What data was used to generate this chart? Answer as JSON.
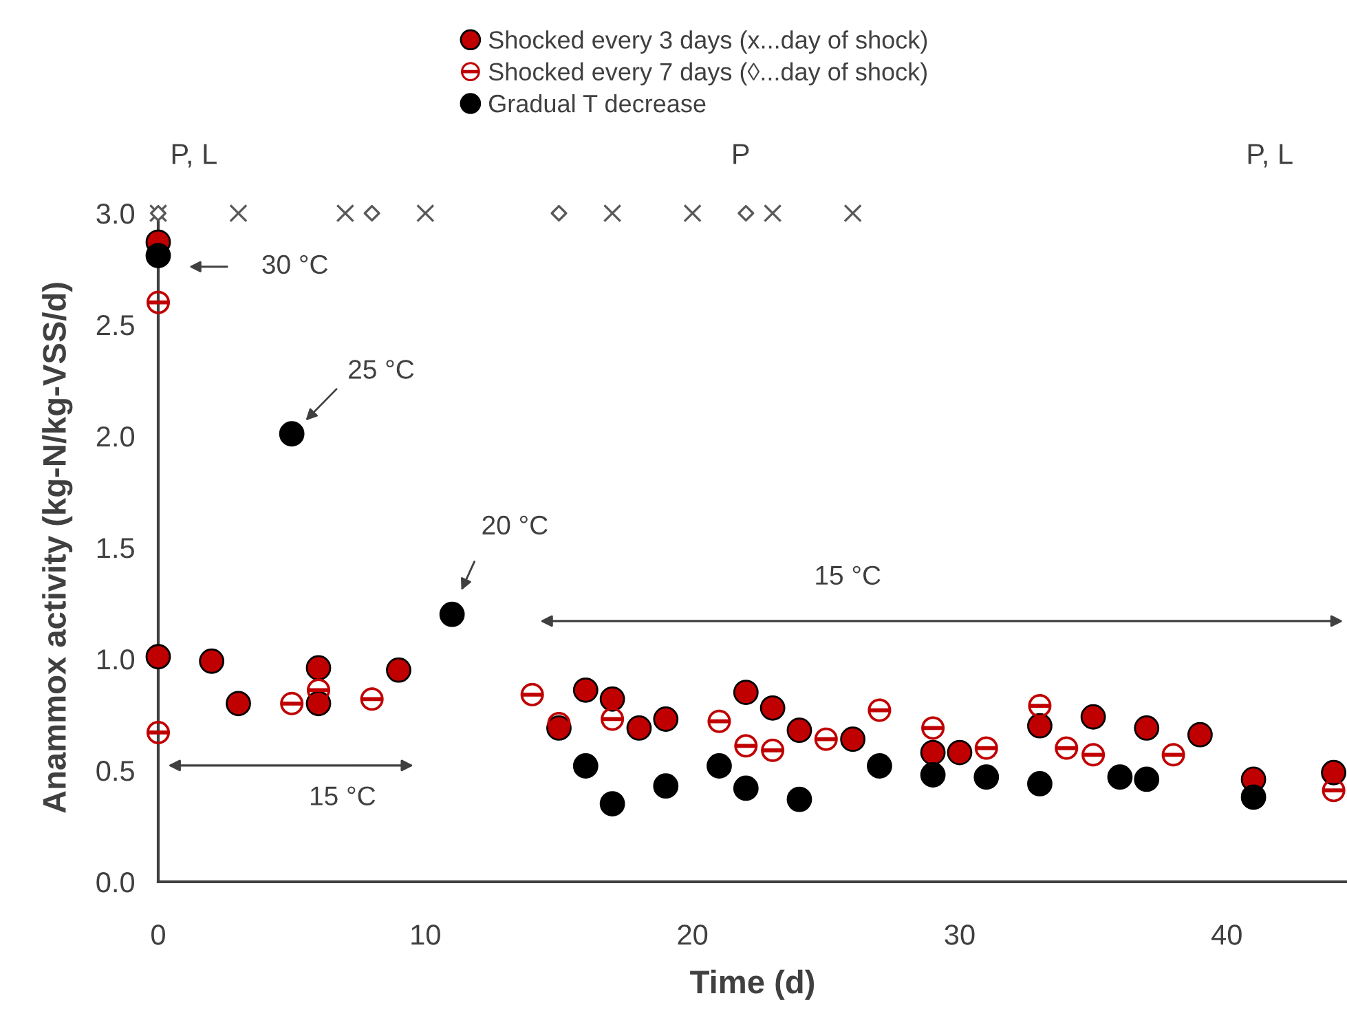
{
  "chart_data": {
    "type": "scatter",
    "xlabel": "Time (d)",
    "ylabel": "Anammox activity (kg-N/kg-VSS/d)",
    "xlim": [
      0,
      44.5
    ],
    "xticks": [
      0,
      10,
      20,
      30,
      40
    ],
    "ylim": [
      0,
      3.0
    ],
    "yticks": [
      {
        "value": 0,
        "label": "0.0"
      },
      {
        "value": 0.5,
        "label": "0.5"
      },
      {
        "value": 1.0,
        "label": "1.0"
      },
      {
        "value": 1.5,
        "label": "1.5"
      },
      {
        "value": 2.0,
        "label": "2.0"
      },
      {
        "value": 2.5,
        "label": "2.5"
      },
      {
        "value": 3.0,
        "label": "3.0"
      }
    ],
    "grid": false,
    "legend": "top",
    "series": [
      {
        "name": "Shocked every 3 days (x...day of shock)",
        "color": "#c00000",
        "marker": "circle",
        "x": [
          0,
          0,
          2,
          3,
          6,
          6,
          9,
          15,
          16,
          17,
          18,
          19,
          22,
          23,
          24,
          26,
          29,
          30,
          33,
          35,
          37,
          39,
          41,
          44
        ],
        "values": [
          2.87,
          1.01,
          0.99,
          0.8,
          0.96,
          0.8,
          0.95,
          0.69,
          0.86,
          0.82,
          0.69,
          0.73,
          0.85,
          0.78,
          0.68,
          0.64,
          0.58,
          0.58,
          0.7,
          0.74,
          0.69,
          0.66,
          0.46,
          0.49
        ]
      },
      {
        "name": "Shocked every 7 days (◊...day of shock)",
        "color": "#c00000",
        "marker": "circle",
        "x": [
          0,
          0,
          5,
          6,
          8,
          14,
          15,
          17,
          21,
          22,
          23,
          25,
          27,
          29,
          31,
          33,
          34,
          35,
          38,
          44
        ],
        "values": [
          2.6,
          0.67,
          0.8,
          0.86,
          0.82,
          0.84,
          0.71,
          0.73,
          0.72,
          0.61,
          0.59,
          0.64,
          0.77,
          0.69,
          0.6,
          0.79,
          0.6,
          0.57,
          0.57,
          0.41
        ]
      },
      {
        "name": "Gradual T decrease",
        "color": "#000000",
        "marker": "circle",
        "x": [
          0,
          5,
          11,
          16,
          17,
          19,
          21,
          22,
          24,
          27,
          29,
          31,
          33,
          36,
          37,
          41
        ],
        "values": [
          2.81,
          2.01,
          1.2,
          0.52,
          0.35,
          0.43,
          0.52,
          0.42,
          0.37,
          0.52,
          0.48,
          0.47,
          0.44,
          0.47,
          0.46,
          0.38
        ]
      },
      {
        "color": "#595959",
        "marker": "cross",
        "x": [
          0,
          3,
          7,
          10,
          17,
          20,
          23,
          26
        ],
        "values": [
          3.0,
          3.0,
          3.0,
          3.0,
          3.0,
          3.0,
          3.0,
          3.0
        ]
      },
      {
        "color": "#595959",
        "marker": "diamond",
        "x": [
          0,
          8,
          15,
          22
        ],
        "values": [
          3.0,
          3.0,
          3.0,
          3.0
        ]
      }
    ],
    "annotations": [
      "30 °C",
      "25 °C",
      "20 °C",
      "P, L",
      "P",
      "P, L",
      "15 °C",
      "15 °C"
    ]
  }
}
